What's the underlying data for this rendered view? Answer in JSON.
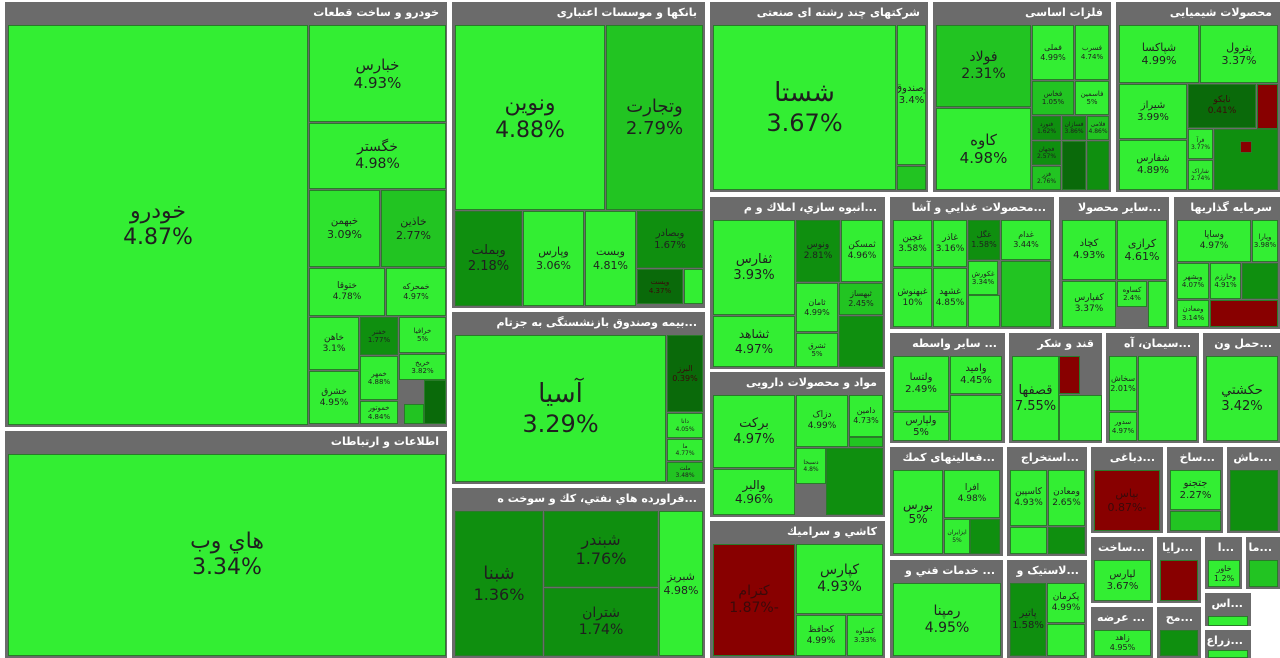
{
  "colors": {
    "bright": "#33ee33",
    "light": "#2ee32e",
    "mid": "#22c422",
    "dark": "#0f8f0f",
    "deep": "#0a6a0a",
    "red": "#880000",
    "sector_bg": "#6b6b6b",
    "title": "#ffffff"
  },
  "sectors": [
    {
      "key": "auto",
      "title": "خودرو و ساخت قطعات",
      "cells": [
        {
          "name": "خودرو",
          "pct": "4.87%"
        },
        {
          "name": "خبارس",
          "pct": "4.93%"
        },
        {
          "name": "خگستر",
          "pct": "4.98%"
        },
        {
          "name": "خبهمن",
          "pct": "3.09%"
        },
        {
          "name": "خاذین",
          "pct": "2.77%"
        },
        {
          "name": "ختوقا",
          "pct": "4.78%"
        },
        {
          "name": "خمحرکه",
          "pct": "4.97%"
        },
        {
          "name": "خاهن",
          "pct": "3.1%"
        },
        {
          "name": "خفنر",
          "pct": "1.77%"
        },
        {
          "name": "خرافیا",
          "pct": "5%"
        },
        {
          "name": "خشرق",
          "pct": "4.95%"
        },
        {
          "name": "خمهر",
          "pct": "4.88%"
        },
        {
          "name": "خریخ",
          "pct": "3.82%"
        },
        {
          "name": "خموتور",
          "pct": "4.84%"
        }
      ]
    },
    {
      "key": "banks",
      "title": "بانکها و موسسات اعتباری",
      "cells": [
        {
          "name": "ونوین",
          "pct": "4.88%"
        },
        {
          "name": "وتجارت",
          "pct": "2.79%"
        },
        {
          "name": "وبملت",
          "pct": "2.18%"
        },
        {
          "name": "وپارس",
          "pct": "3.06%"
        },
        {
          "name": "وبست",
          "pct": "4.81%"
        },
        {
          "name": "وبصادر",
          "pct": "1.67%"
        },
        {
          "name": "وپست",
          "pct": "4.37%"
        }
      ]
    },
    {
      "key": "holding",
      "title": "شرکتهای چند رشته ای صنعتی",
      "cells": [
        {
          "name": "شستا",
          "pct": "3.67%"
        },
        {
          "name": "وصندوق",
          "pct": "3.4%"
        }
      ]
    },
    {
      "key": "metals",
      "title": "فلزات اساسی",
      "cells": [
        {
          "name": "فولاد",
          "pct": "2.31%"
        },
        {
          "name": "فملی",
          "pct": "4.99%"
        },
        {
          "name": "فسرب",
          "pct": "4.74%"
        },
        {
          "name": "فخاس",
          "pct": "1.05%"
        },
        {
          "name": "فاسمین",
          "pct": "5%"
        },
        {
          "name": "کاوه",
          "pct": "4.98%"
        },
        {
          "name": "فنورد",
          "pct": "1.62%"
        },
        {
          "name": "فسازان",
          "pct": "3.86%"
        },
        {
          "name": "فلامی",
          "pct": "4.86%"
        },
        {
          "name": "فجهان",
          "pct": "2.57%"
        },
        {
          "name": "فزر",
          "pct": "2.76%"
        }
      ]
    },
    {
      "key": "chem",
      "title": "محصولات شیمیایی",
      "cells": [
        {
          "name": "شپاکسا",
          "pct": "4.99%"
        },
        {
          "name": "پترول",
          "pct": "3.37%"
        },
        {
          "name": "شیراز",
          "pct": "3.99%"
        },
        {
          "name": "نابکو",
          "pct": "0.41%"
        },
        {
          "name": "شفارس",
          "pct": "4.89%"
        },
        {
          "name": "فرآ",
          "pct": "3.77%"
        },
        {
          "name": "شاراک",
          "pct": "2.74%"
        }
      ]
    },
    {
      "key": "it",
      "title": "اطلاعات و ارتباطات",
      "cells": [
        {
          "name": "هاي وب",
          "pct": "3.34%"
        }
      ]
    },
    {
      "key": "insurance",
      "title": "...بیمه وصندوق بازنشستگی به جزتام",
      "cells": [
        {
          "name": "آسیا",
          "pct": "3.29%"
        },
        {
          "name": "البرز",
          "pct": "0.39%"
        },
        {
          "name": "دانا",
          "pct": "4.05%"
        },
        {
          "name": "ما",
          "pct": "4.77%"
        },
        {
          "name": "ملت",
          "pct": "3.48%"
        }
      ]
    },
    {
      "key": "oil",
      "title": "...فراورده هاي نفتي، كك و سوخت ه",
      "cells": [
        {
          "name": "شبنا",
          "pct": "1.36%"
        },
        {
          "name": "شبندر",
          "pct": "1.76%"
        },
        {
          "name": "شتران",
          "pct": "1.74%"
        },
        {
          "name": "شبریز",
          "pct": "4.98%"
        }
      ]
    },
    {
      "key": "realestate",
      "title": "...انبوه سازي، املاك و م",
      "cells": [
        {
          "name": "ثفارس",
          "pct": "3.93%"
        },
        {
          "name": "ونوس",
          "pct": "2.81%"
        },
        {
          "name": "ثمسکن",
          "pct": "4.96%"
        },
        {
          "name": "ثامان",
          "pct": "4.99%"
        },
        {
          "name": "ثبهساز",
          "pct": "2.45%"
        },
        {
          "name": "ثشاهد",
          "pct": "4.97%"
        },
        {
          "name": "ثشرق",
          "pct": "5%"
        }
      ]
    },
    {
      "key": "food",
      "title": "...محصولات غذايي و آشا",
      "cells": [
        {
          "name": "غچین",
          "pct": "3.58%"
        },
        {
          "name": "غاذر",
          "pct": "3.16%"
        },
        {
          "name": "غگل",
          "pct": "1.58%"
        },
        {
          "name": "غدام",
          "pct": "3.44%"
        },
        {
          "name": "غبهنوش",
          "pct": "10%"
        },
        {
          "name": "غشهد",
          "pct": "4.85%"
        },
        {
          "name": "غکورش",
          "pct": "3.34%"
        }
      ]
    },
    {
      "key": "agri",
      "title": "...سایر محصولا",
      "cells": [
        {
          "name": "کچاد",
          "pct": "4.93%"
        },
        {
          "name": "کرازی",
          "pct": "4.61%"
        },
        {
          "name": "کفپارس",
          "pct": "3.37%"
        },
        {
          "name": "کساوه",
          "pct": "2.4%"
        }
      ]
    },
    {
      "key": "invest",
      "title": "سرمایه گذاریها",
      "cells": [
        {
          "name": "وساپا",
          "pct": "4.97%"
        },
        {
          "name": "وپارا",
          "pct": "3.98%"
        },
        {
          "name": "وبشهر",
          "pct": "4.07%"
        },
        {
          "name": "وخارزم",
          "pct": "4.91%"
        },
        {
          "name": "ومعادن",
          "pct": "3.14%"
        }
      ]
    },
    {
      "key": "pharma",
      "title": "مواد و محصولات دارویی",
      "cells": [
        {
          "name": "برکت",
          "pct": "4.97%"
        },
        {
          "name": "دزاک",
          "pct": "4.99%"
        },
        {
          "name": "دامین",
          "pct": "4.73%"
        },
        {
          "name": "والبر",
          "pct": "4.96%"
        },
        {
          "name": "دسبحا",
          "pct": "4.8%"
        }
      ]
    },
    {
      "key": "ceramic",
      "title": "کاشي و سراميك",
      "cells": [
        {
          "name": "کترام",
          "pct": "-1.87%"
        },
        {
          "name": "کپارس",
          "pct": "4.93%"
        },
        {
          "name": "کحافظ",
          "pct": "4.99%"
        },
        {
          "name": "کساوه",
          "pct": "3.33%"
        }
      ]
    },
    {
      "key": "trade",
      "title": "... سایر واسطه",
      "cells": [
        {
          "name": "ولتسا",
          "pct": "2.49%"
        },
        {
          "name": "وامید",
          "pct": "4.45%"
        },
        {
          "name": "ولپارس",
          "pct": "5%"
        }
      ]
    },
    {
      "key": "sugar",
      "title": "قند و شکر",
      "cells": [
        {
          "name": "قصفها",
          "pct": "7.55%"
        }
      ]
    },
    {
      "key": "cement",
      "title": "...سیمان، آه",
      "cells": [
        {
          "name": "سخاش",
          "pct": "2.01%"
        },
        {
          "name": "سدور",
          "pct": "4.97%"
        }
      ]
    },
    {
      "key": "transport",
      "title": "...حمل ون",
      "cells": [
        {
          "name": "حکشتي",
          "pct": "3.42%"
        }
      ]
    },
    {
      "key": "finance",
      "title": "...فعالیتهای کمك",
      "cells": [
        {
          "name": "بورس",
          "pct": "5%"
        },
        {
          "name": "افرا",
          "pct": "4.98%"
        },
        {
          "name": "ایزایران",
          "pct": "5%"
        }
      ]
    },
    {
      "key": "mining",
      "title": "...استخراج",
      "cells": [
        {
          "name": "کاسپین",
          "pct": "4.93%"
        },
        {
          "name": "ومعادن",
          "pct": "2.65%"
        }
      ]
    },
    {
      "key": "leather",
      "title": "...دباغی",
      "cells": [
        {
          "name": "بپاس",
          "pct": "-0.87%"
        }
      ]
    },
    {
      "key": "build",
      "title": "...ساخ",
      "cells": [
        {
          "name": "جتجنو",
          "pct": "2.27%"
        }
      ]
    },
    {
      "key": "machine",
      "title": "...ماش",
      "cells": []
    },
    {
      "key": "services",
      "title": "... خدمات فني و",
      "cells": [
        {
          "name": "رمپنا",
          "pct": "4.95%"
        }
      ]
    },
    {
      "key": "plastic",
      "title": "...لاستیک و",
      "cells": [
        {
          "name": "پاتیر",
          "pct": "1.58%"
        },
        {
          "name": "پکرمان",
          "pct": "4.99%"
        }
      ]
    },
    {
      "key": "construction",
      "title": "...ساخت",
      "cells": [
        {
          "name": "لپارس",
          "pct": "3.67%"
        }
      ]
    },
    {
      "key": "wood",
      "title": "...رایا",
      "cells": []
    },
    {
      "key": "misc1",
      "title": "...ا",
      "cells": [
        {
          "name": "خاور",
          "pct": "1.2%"
        }
      ]
    },
    {
      "key": "misc2",
      "title": "...ما",
      "cells": []
    },
    {
      "key": "supply",
      "title": "... عرضه",
      "cells": [
        {
          "name": "زاهد",
          "pct": "4.95%"
        }
      ]
    },
    {
      "key": "misc3",
      "title": "...مح",
      "cells": []
    },
    {
      "key": "misc4",
      "title": "...اس",
      "cells": []
    },
    {
      "key": "agri2",
      "title": "...زراع",
      "cells": []
    }
  ]
}
